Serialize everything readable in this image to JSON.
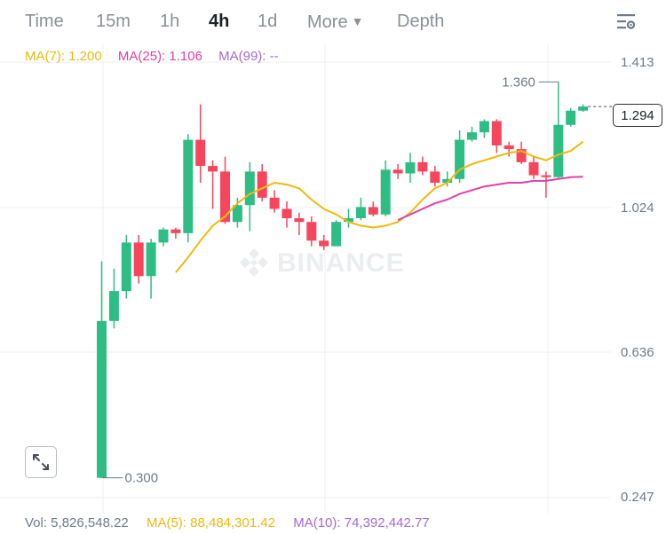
{
  "toolbar": {
    "tabs": [
      {
        "label": "Time"
      },
      {
        "label": "15m"
      },
      {
        "label": "1h"
      },
      {
        "label": "4h",
        "active": true
      },
      {
        "label": "1d"
      },
      {
        "label": "More"
      },
      {
        "label": "Depth"
      }
    ],
    "settings_icon": "chart-settings-icon"
  },
  "legend": {
    "ma7": "MA(7): 1.200",
    "ma25": "MA(25): 1.106",
    "ma99": "MA(99): --"
  },
  "price_axis": [
    "1.413",
    "1.024",
    "0.636",
    "0.247"
  ],
  "current_price": "1.294",
  "high_marker": "1.360",
  "low_marker": "0.300",
  "watermark": "BINANCE",
  "volume": {
    "vol": "Vol: 5,826,548.22",
    "ma5": "MA(5): 88,484,301.42",
    "ma10": "MA(10): 74,392,442.77"
  },
  "colors": {
    "up": "#2ebd85",
    "down": "#f6465d",
    "ma7": "#f0b90b",
    "ma25": "#e03fa8",
    "ma99": "#a36ad4",
    "grid": "#eef0f2"
  },
  "chart_data": {
    "type": "candlestick",
    "ylim": [
      0.247,
      1.413
    ],
    "candles": [
      {
        "o": 0.3,
        "h": 0.88,
        "l": 0.3,
        "c": 0.72
      },
      {
        "o": 0.72,
        "h": 0.86,
        "l": 0.7,
        "c": 0.8
      },
      {
        "o": 0.8,
        "h": 0.95,
        "l": 0.78,
        "c": 0.93
      },
      {
        "o": 0.93,
        "h": 0.95,
        "l": 0.82,
        "c": 0.84
      },
      {
        "o": 0.84,
        "h": 0.94,
        "l": 0.78,
        "c": 0.93
      },
      {
        "o": 0.93,
        "h": 0.97,
        "l": 0.92,
        "c": 0.965
      },
      {
        "o": 0.965,
        "h": 0.97,
        "l": 0.94,
        "c": 0.955
      },
      {
        "o": 0.955,
        "h": 1.22,
        "l": 0.93,
        "c": 1.205
      },
      {
        "o": 1.205,
        "h": 1.3,
        "l": 1.09,
        "c": 1.135
      },
      {
        "o": 1.135,
        "h": 1.15,
        "l": 1.02,
        "c": 1.12
      },
      {
        "o": 1.12,
        "h": 1.16,
        "l": 0.98,
        "c": 0.985
      },
      {
        "o": 0.985,
        "h": 1.05,
        "l": 0.97,
        "c": 1.03
      },
      {
        "o": 1.03,
        "h": 1.145,
        "l": 0.96,
        "c": 1.12
      },
      {
        "o": 1.12,
        "h": 1.14,
        "l": 1.04,
        "c": 1.05
      },
      {
        "o": 1.05,
        "h": 1.07,
        "l": 1.01,
        "c": 1.02
      },
      {
        "o": 1.02,
        "h": 1.04,
        "l": 0.97,
        "c": 0.995
      },
      {
        "o": 0.995,
        "h": 1.01,
        "l": 0.95,
        "c": 0.985
      },
      {
        "o": 0.985,
        "h": 1.0,
        "l": 0.92,
        "c": 0.935
      },
      {
        "o": 0.935,
        "h": 0.95,
        "l": 0.91,
        "c": 0.92
      },
      {
        "o": 0.92,
        "h": 0.99,
        "l": 0.92,
        "c": 0.985
      },
      {
        "o": 0.985,
        "h": 1.02,
        "l": 0.97,
        "c": 0.995
      },
      {
        "o": 0.995,
        "h": 1.05,
        "l": 0.99,
        "c": 1.025
      },
      {
        "o": 1.025,
        "h": 1.04,
        "l": 1.0,
        "c": 1.005
      },
      {
        "o": 1.005,
        "h": 1.15,
        "l": 1.0,
        "c": 1.125
      },
      {
        "o": 1.125,
        "h": 1.14,
        "l": 1.1,
        "c": 1.115
      },
      {
        "o": 1.115,
        "h": 1.17,
        "l": 1.09,
        "c": 1.145
      },
      {
        "o": 1.145,
        "h": 1.16,
        "l": 1.11,
        "c": 1.12
      },
      {
        "o": 1.12,
        "h": 1.135,
        "l": 1.08,
        "c": 1.09
      },
      {
        "o": 1.09,
        "h": 1.12,
        "l": 1.08,
        "c": 1.1
      },
      {
        "o": 1.1,
        "h": 1.23,
        "l": 1.09,
        "c": 1.205
      },
      {
        "o": 1.205,
        "h": 1.24,
        "l": 1.2,
        "c": 1.225
      },
      {
        "o": 1.225,
        "h": 1.26,
        "l": 1.21,
        "c": 1.255
      },
      {
        "o": 1.255,
        "h": 1.26,
        "l": 1.17,
        "c": 1.19
      },
      {
        "o": 1.19,
        "h": 1.2,
        "l": 1.16,
        "c": 1.18
      },
      {
        "o": 1.18,
        "h": 1.2,
        "l": 1.14,
        "c": 1.145
      },
      {
        "o": 1.145,
        "h": 1.16,
        "l": 1.1,
        "c": 1.11
      },
      {
        "o": 1.11,
        "h": 1.12,
        "l": 1.05,
        "c": 1.105
      },
      {
        "o": 1.105,
        "h": 1.36,
        "l": 1.1,
        "c": 1.245
      },
      {
        "o": 1.245,
        "h": 1.29,
        "l": 1.24,
        "c": 1.283
      },
      {
        "o": 1.283,
        "h": 1.3,
        "l": 1.28,
        "c": 1.294
      }
    ],
    "ma7_values": [
      null,
      null,
      null,
      null,
      null,
      null,
      0.85,
      0.89,
      0.935,
      0.975,
      1.0,
      1.035,
      1.06,
      1.075,
      1.09,
      1.085,
      1.075,
      1.045,
      1.02,
      1.005,
      0.985,
      0.975,
      0.97,
      0.975,
      0.985,
      1.01,
      1.045,
      1.075,
      1.09,
      1.125,
      1.14,
      1.15,
      1.16,
      1.17,
      1.175,
      1.16,
      1.15,
      1.165,
      1.175,
      1.2
    ],
    "ma25_values": [
      null,
      null,
      null,
      null,
      null,
      null,
      null,
      null,
      null,
      null,
      null,
      null,
      null,
      null,
      null,
      null,
      null,
      null,
      null,
      null,
      null,
      null,
      null,
      null,
      0.99,
      1.005,
      1.02,
      1.035,
      1.045,
      1.06,
      1.07,
      1.08,
      1.085,
      1.09,
      1.09,
      1.095,
      1.095,
      1.1,
      1.105,
      1.106
    ]
  }
}
